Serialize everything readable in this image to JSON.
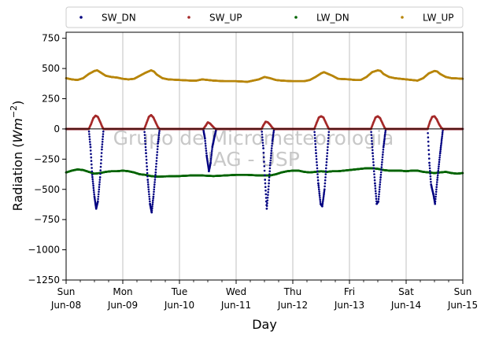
{
  "chart_data": {
    "type": "scatter",
    "ylabel": "Radiation (",
    "ylabel_unit": "Wm",
    "ylabel_exp": "−2",
    "ylabel_close": ")",
    "xlabel": "Day",
    "ylim": [
      -1250,
      800
    ],
    "yticks": [
      750,
      500,
      250,
      0,
      -250,
      -500,
      -750,
      -1000,
      -1250
    ],
    "ytick_labels": [
      "750",
      "500",
      "250",
      "0",
      "−250",
      "−500",
      "−750",
      "−1000",
      "−1250"
    ],
    "xlim_days": [
      0,
      7
    ],
    "x_ticks": [
      {
        "day": 0,
        "line1": "Sun",
        "line2": "Jun-08"
      },
      {
        "day": 1,
        "line1": "Mon",
        "line2": "Jun-09"
      },
      {
        "day": 2,
        "line1": "Tue",
        "line2": "Jun-10"
      },
      {
        "day": 3,
        "line1": "Wed",
        "line2": "Jun-11"
      },
      {
        "day": 4,
        "line1": "Thu",
        "line2": "Jun-12"
      },
      {
        "day": 5,
        "line1": "Fri",
        "line2": "Jun-13"
      },
      {
        "day": 6,
        "line1": "Sat",
        "line2": "Jun-14"
      },
      {
        "day": 7,
        "line1": "Sun",
        "line2": "Jun-15"
      }
    ],
    "grid": "vertical",
    "legend_placement": "top",
    "watermark": [
      "Grupo de Micrometeorologia",
      "IAG - USP"
    ],
    "series": [
      {
        "name": "SW_DN",
        "color": "#000080",
        "points": [
          [
            0.0,
            0
          ],
          [
            0.4,
            0
          ],
          [
            0.43,
            -150
          ],
          [
            0.46,
            -380
          ],
          [
            0.5,
            -560
          ],
          [
            0.53,
            -660
          ],
          [
            0.56,
            -600
          ],
          [
            0.6,
            -400
          ],
          [
            0.63,
            -170
          ],
          [
            0.66,
            0
          ],
          [
            1.0,
            0
          ],
          [
            1.38,
            0
          ],
          [
            1.41,
            -200
          ],
          [
            1.44,
            -420
          ],
          [
            1.48,
            -620
          ],
          [
            1.51,
            -690
          ],
          [
            1.54,
            -560
          ],
          [
            1.58,
            -360
          ],
          [
            1.62,
            -120
          ],
          [
            1.65,
            0
          ],
          [
            2.0,
            0
          ],
          [
            2.42,
            0
          ],
          [
            2.45,
            -80
          ],
          [
            2.48,
            -220
          ],
          [
            2.52,
            -350
          ],
          [
            2.55,
            -280
          ],
          [
            2.58,
            -150
          ],
          [
            2.62,
            -60
          ],
          [
            2.65,
            0
          ],
          [
            3.0,
            0
          ],
          [
            3.45,
            0
          ],
          [
            3.48,
            -160
          ],
          [
            3.51,
            -420
          ],
          [
            3.54,
            -660
          ],
          [
            3.57,
            -500
          ],
          [
            3.6,
            -300
          ],
          [
            3.64,
            -100
          ],
          [
            3.67,
            0
          ],
          [
            4.0,
            0
          ],
          [
            4.38,
            0
          ],
          [
            4.41,
            -200
          ],
          [
            4.45,
            -450
          ],
          [
            4.49,
            -620
          ],
          [
            4.52,
            -640
          ],
          [
            4.56,
            -500
          ],
          [
            4.6,
            -250
          ],
          [
            4.64,
            0
          ],
          [
            5.0,
            0
          ],
          [
            5.38,
            0
          ],
          [
            5.41,
            -200
          ],
          [
            5.45,
            -450
          ],
          [
            5.48,
            -620
          ],
          [
            5.51,
            -600
          ],
          [
            5.55,
            -400
          ],
          [
            5.6,
            -150
          ],
          [
            5.64,
            0
          ],
          [
            6.0,
            0
          ],
          [
            6.38,
            0
          ],
          [
            6.41,
            -280
          ],
          [
            6.44,
            -460
          ],
          [
            6.48,
            -540
          ],
          [
            6.51,
            -620
          ],
          [
            6.55,
            -420
          ],
          [
            6.6,
            -200
          ],
          [
            6.65,
            0
          ],
          [
            7.0,
            0
          ]
        ]
      },
      {
        "name": "SW_UP",
        "color": "#a52a2a",
        "points": [
          [
            0.0,
            0
          ],
          [
            0.4,
            0
          ],
          [
            0.44,
            40
          ],
          [
            0.48,
            90
          ],
          [
            0.52,
            110
          ],
          [
            0.56,
            100
          ],
          [
            0.6,
            60
          ],
          [
            0.64,
            15
          ],
          [
            0.66,
            0
          ],
          [
            1.0,
            0
          ],
          [
            1.38,
            0
          ],
          [
            1.42,
            50
          ],
          [
            1.46,
            100
          ],
          [
            1.5,
            115
          ],
          [
            1.54,
            95
          ],
          [
            1.58,
            55
          ],
          [
            1.62,
            15
          ],
          [
            1.65,
            0
          ],
          [
            2.0,
            0
          ],
          [
            2.42,
            0
          ],
          [
            2.46,
            25
          ],
          [
            2.5,
            55
          ],
          [
            2.54,
            45
          ],
          [
            2.58,
            25
          ],
          [
            2.62,
            5
          ],
          [
            2.65,
            0
          ],
          [
            3.0,
            0
          ],
          [
            3.45,
            0
          ],
          [
            3.48,
            30
          ],
          [
            3.52,
            60
          ],
          [
            3.56,
            55
          ],
          [
            3.6,
            35
          ],
          [
            3.64,
            10
          ],
          [
            3.67,
            0
          ],
          [
            4.0,
            0
          ],
          [
            4.38,
            0
          ],
          [
            4.42,
            50
          ],
          [
            4.46,
            95
          ],
          [
            4.5,
            105
          ],
          [
            4.54,
            95
          ],
          [
            4.58,
            55
          ],
          [
            4.62,
            15
          ],
          [
            4.64,
            0
          ],
          [
            5.0,
            0
          ],
          [
            5.38,
            0
          ],
          [
            5.42,
            50
          ],
          [
            5.46,
            95
          ],
          [
            5.5,
            105
          ],
          [
            5.54,
            90
          ],
          [
            5.58,
            50
          ],
          [
            5.62,
            10
          ],
          [
            5.64,
            0
          ],
          [
            6.0,
            0
          ],
          [
            6.38,
            0
          ],
          [
            6.42,
            60
          ],
          [
            6.46,
            100
          ],
          [
            6.5,
            105
          ],
          [
            6.54,
            80
          ],
          [
            6.58,
            40
          ],
          [
            6.62,
            10
          ],
          [
            6.65,
            0
          ],
          [
            7.0,
            0
          ]
        ]
      },
      {
        "name": "LW_DN",
        "color": "#006400",
        "points": [
          [
            0.0,
            -360
          ],
          [
            0.1,
            -345
          ],
          [
            0.2,
            -335
          ],
          [
            0.3,
            -340
          ],
          [
            0.4,
            -355
          ],
          [
            0.5,
            -370
          ],
          [
            0.6,
            -365
          ],
          [
            0.7,
            -355
          ],
          [
            0.8,
            -350
          ],
          [
            0.9,
            -350
          ],
          [
            1.0,
            -345
          ],
          [
            1.1,
            -350
          ],
          [
            1.2,
            -360
          ],
          [
            1.3,
            -375
          ],
          [
            1.4,
            -380
          ],
          [
            1.5,
            -390
          ],
          [
            1.6,
            -395
          ],
          [
            1.8,
            -392
          ],
          [
            2.0,
            -390
          ],
          [
            2.2,
            -385
          ],
          [
            2.4,
            -385
          ],
          [
            2.6,
            -390
          ],
          [
            2.8,
            -385
          ],
          [
            3.0,
            -380
          ],
          [
            3.2,
            -380
          ],
          [
            3.4,
            -385
          ],
          [
            3.6,
            -385
          ],
          [
            3.7,
            -375
          ],
          [
            3.8,
            -360
          ],
          [
            3.9,
            -350
          ],
          [
            4.0,
            -345
          ],
          [
            4.1,
            -345
          ],
          [
            4.2,
            -355
          ],
          [
            4.3,
            -360
          ],
          [
            4.4,
            -355
          ],
          [
            4.5,
            -350
          ],
          [
            4.6,
            -355
          ],
          [
            4.7,
            -350
          ],
          [
            4.8,
            -350
          ],
          [
            4.9,
            -345
          ],
          [
            5.0,
            -340
          ],
          [
            5.1,
            -335
          ],
          [
            5.2,
            -330
          ],
          [
            5.3,
            -325
          ],
          [
            5.4,
            -325
          ],
          [
            5.5,
            -330
          ],
          [
            5.6,
            -340
          ],
          [
            5.7,
            -345
          ],
          [
            5.8,
            -345
          ],
          [
            5.9,
            -345
          ],
          [
            6.0,
            -350
          ],
          [
            6.1,
            -345
          ],
          [
            6.2,
            -345
          ],
          [
            6.3,
            -355
          ],
          [
            6.4,
            -360
          ],
          [
            6.5,
            -365
          ],
          [
            6.6,
            -360
          ],
          [
            6.7,
            -355
          ],
          [
            6.8,
            -365
          ],
          [
            6.9,
            -370
          ],
          [
            7.0,
            -365
          ]
        ]
      },
      {
        "name": "LW_UP",
        "color": "#b8860b",
        "points": [
          [
            0.0,
            420
          ],
          [
            0.1,
            410
          ],
          [
            0.2,
            405
          ],
          [
            0.3,
            420
          ],
          [
            0.4,
            455
          ],
          [
            0.5,
            480
          ],
          [
            0.55,
            485
          ],
          [
            0.6,
            470
          ],
          [
            0.7,
            440
          ],
          [
            0.8,
            430
          ],
          [
            0.9,
            425
          ],
          [
            1.0,
            415
          ],
          [
            1.1,
            410
          ],
          [
            1.2,
            415
          ],
          [
            1.3,
            440
          ],
          [
            1.4,
            465
          ],
          [
            1.5,
            485
          ],
          [
            1.55,
            475
          ],
          [
            1.6,
            450
          ],
          [
            1.7,
            420
          ],
          [
            1.8,
            410
          ],
          [
            2.0,
            405
          ],
          [
            2.2,
            400
          ],
          [
            2.3,
            400
          ],
          [
            2.4,
            410
          ],
          [
            2.5,
            405
          ],
          [
            2.6,
            400
          ],
          [
            2.8,
            395
          ],
          [
            3.0,
            395
          ],
          [
            3.2,
            390
          ],
          [
            3.4,
            410
          ],
          [
            3.5,
            430
          ],
          [
            3.6,
            420
          ],
          [
            3.7,
            405
          ],
          [
            3.8,
            400
          ],
          [
            4.0,
            395
          ],
          [
            4.2,
            395
          ],
          [
            4.3,
            405
          ],
          [
            4.4,
            430
          ],
          [
            4.5,
            460
          ],
          [
            4.55,
            470
          ],
          [
            4.6,
            460
          ],
          [
            4.7,
            440
          ],
          [
            4.8,
            415
          ],
          [
            5.0,
            410
          ],
          [
            5.1,
            405
          ],
          [
            5.2,
            405
          ],
          [
            5.3,
            430
          ],
          [
            5.4,
            470
          ],
          [
            5.5,
            485
          ],
          [
            5.55,
            480
          ],
          [
            5.6,
            455
          ],
          [
            5.7,
            430
          ],
          [
            5.8,
            420
          ],
          [
            6.0,
            410
          ],
          [
            6.1,
            405
          ],
          [
            6.2,
            400
          ],
          [
            6.3,
            420
          ],
          [
            6.4,
            460
          ],
          [
            6.5,
            480
          ],
          [
            6.55,
            475
          ],
          [
            6.6,
            455
          ],
          [
            6.7,
            430
          ],
          [
            6.8,
            420
          ],
          [
            6.9,
            418
          ],
          [
            7.0,
            415
          ]
        ]
      }
    ]
  }
}
